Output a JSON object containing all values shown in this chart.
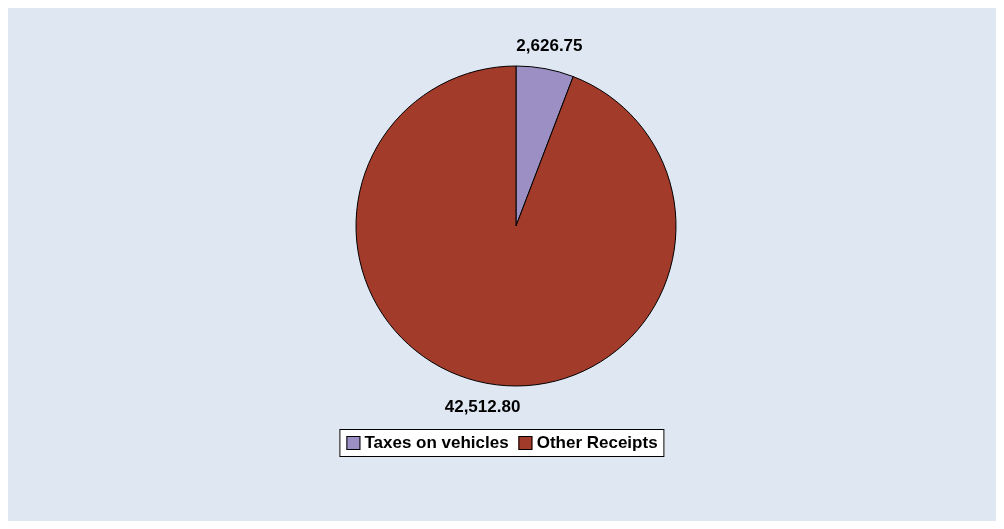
{
  "chart_data": {
    "type": "pie",
    "categories": [
      "Taxes on vehicles",
      "Other Receipts"
    ],
    "values": [
      2626.75,
      42512.8
    ],
    "colors": [
      "#9b8fc4",
      "#a33b2b"
    ],
    "value_labels": [
      "2,626.75",
      "42,512.80"
    ],
    "legend": "bottom"
  }
}
